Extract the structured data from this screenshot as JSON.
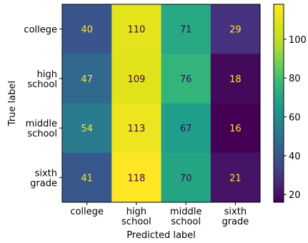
{
  "chart_data": {
    "type": "heatmap",
    "title": "",
    "xlabel": "Predicted label",
    "ylabel": "True label",
    "x_categories": [
      [
        "college"
      ],
      [
        "high",
        "school"
      ],
      [
        "middle",
        "school"
      ],
      [
        "sixth",
        "grade"
      ]
    ],
    "y_categories": [
      [
        "college"
      ],
      [
        "high",
        "school"
      ],
      [
        "middle",
        "school"
      ],
      [
        "sixth",
        "grade"
      ]
    ],
    "values": [
      [
        40,
        110,
        71,
        29
      ],
      [
        47,
        109,
        76,
        18
      ],
      [
        54,
        113,
        67,
        16
      ],
      [
        41,
        118,
        70,
        21
      ]
    ],
    "colormap": "viridis",
    "colorbar": {
      "min": 16,
      "max": 118,
      "ticks": [
        20,
        40,
        60,
        80,
        100
      ]
    },
    "cell_text_colors": {
      "dark_cells": "#fde725",
      "light_cells": "#440154"
    }
  }
}
